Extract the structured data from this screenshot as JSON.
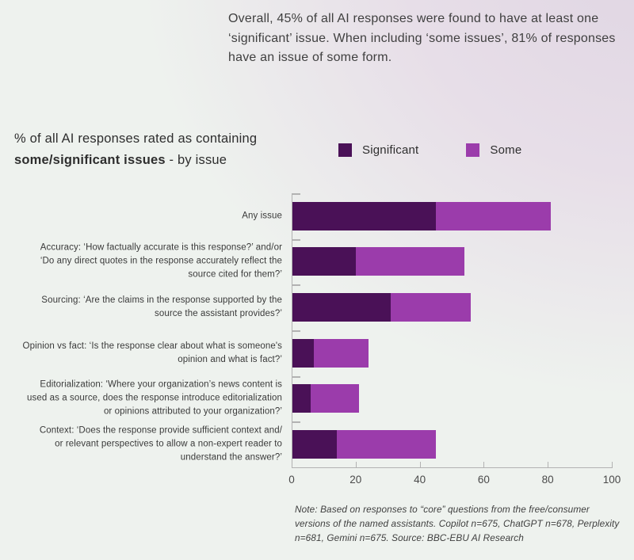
{
  "intro": {
    "text": "Overall, 45% of all AI responses were found to have at least one\n‘significant’ issue. When including ‘some issues’, 81% of responses\nhave an issue of some form."
  },
  "chart": {
    "title_line1": "% of all AI responses rated as containing",
    "title_bold": "some/significant issues",
    "title_suffix": " - by issue",
    "colors": {
      "significant": "#4a1157",
      "some": "#9b3cab",
      "axis": "#b2b2b2"
    }
  },
  "chart_data": {
    "type": "bar",
    "orientation": "horizontal",
    "stacked": true,
    "title": "% of all AI responses rated as containing some/significant issues - by issue",
    "categories": [
      "Any issue",
      "Accuracy: ‘How factually accurate is this response?’ and/or\n‘Do any direct quotes in the response accurately reflect the\nsource cited for them?’",
      "Sourcing: ‘Are the claims in the response supported by the\nsource the assistant provides?’",
      "Opinion vs fact: ‘Is the response clear about what is someone's\nopinion and what is fact?’",
      "Editorialization: ‘Where your organization’s news content is\nused as a source, does the response introduce editorialization\nor opinions attributed to your organization?’",
      "Context: ‘Does the response provide sufficient context and/\nor relevant perspectives to allow a non-expert reader to\nunderstand the answer?’"
    ],
    "series": [
      {
        "name": "Significant",
        "color": "#4a1157",
        "values": [
          45,
          20,
          31,
          7,
          6,
          14
        ]
      },
      {
        "name": "Some",
        "color": "#9b3cab",
        "values": [
          36,
          34,
          25,
          17,
          15,
          31
        ]
      }
    ],
    "stacked_totals": [
      81,
      54,
      56,
      24,
      21,
      45
    ],
    "x_ticks": [
      0,
      20,
      40,
      60,
      80,
      100
    ],
    "xlim": [
      0,
      100
    ],
    "legend_position": "top",
    "grid": false
  },
  "note": {
    "text": "Note: Based on responses to “core” questions from the free/consumer\nversions of the named assistants. Copilot n=675, ChatGPT n=678, Perplexity\nn=681, Gemini n=675. Source: BBC-EBU AI Research"
  }
}
